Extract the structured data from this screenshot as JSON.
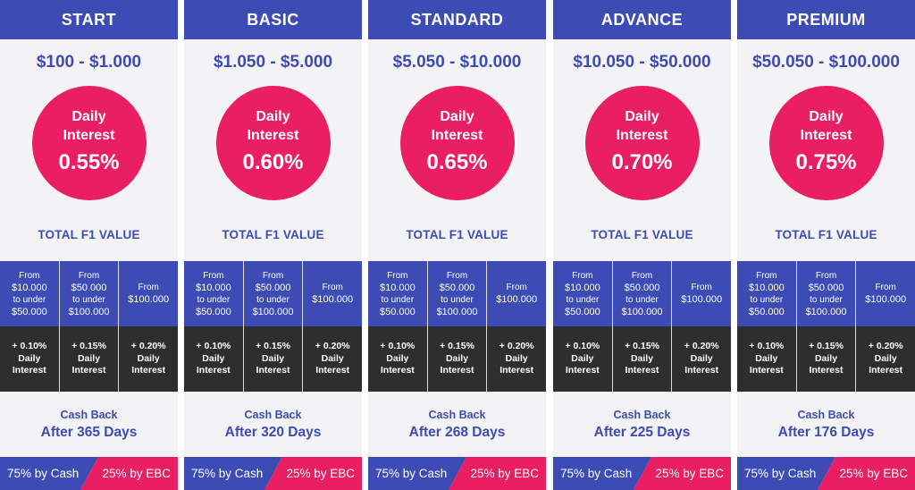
{
  "colors": {
    "blue": "#3d4bb4",
    "pink": "#e91e63",
    "dark": "#2e2e2e",
    "panel": "#f3f3f5"
  },
  "labels": {
    "daily": "Daily",
    "interest": "Interest",
    "total_f1": "TOTAL F1 VALUE",
    "cash_back": "Cash Back"
  },
  "tiers": [
    {
      "from": "From",
      "amount_a": "$10.000",
      "to_under": "to under",
      "amount_b": "$50.000"
    },
    {
      "from": "From",
      "amount_a": "$50.000",
      "to_under": "to under",
      "amount_b": "$100.000"
    },
    {
      "from": "From",
      "amount_a": "$100.000"
    }
  ],
  "bonuses": [
    {
      "rate": "+ 0.10%",
      "daily": "Daily",
      "interest": "Interest"
    },
    {
      "rate": "+ 0.15%",
      "daily": "Daily",
      "interest": "Interest"
    },
    {
      "rate": "+ 0.20%",
      "daily": "Daily",
      "interest": "Interest"
    }
  ],
  "plans": [
    {
      "name": "START",
      "price": "$100 - $1.000",
      "rate": "0.55%",
      "after": "After 365 Days",
      "cash_split": "75% by Cash",
      "ebc_split": "25% by EBC"
    },
    {
      "name": "BASIC",
      "price": "$1.050 - $5.000",
      "rate": "0.60%",
      "after": "After 320 Days",
      "cash_split": "75% by Cash",
      "ebc_split": "25% by EBC"
    },
    {
      "name": "STANDARD",
      "price": "$5.050 - $10.000",
      "rate": "0.65%",
      "after": "After 268 Days",
      "cash_split": "75% by Cash",
      "ebc_split": "25% by EBC"
    },
    {
      "name": "ADVANCE",
      "price": "$10.050 - $50.000",
      "rate": "0.70%",
      "after": "After 225 Days",
      "cash_split": "75% by Cash",
      "ebc_split": "25% by EBC"
    },
    {
      "name": "PREMIUM",
      "price": "$50.050 - $100.000",
      "rate": "0.75%",
      "after": "After 176 Days",
      "cash_split": "75% by Cash",
      "ebc_split": "25% by EBC"
    }
  ]
}
